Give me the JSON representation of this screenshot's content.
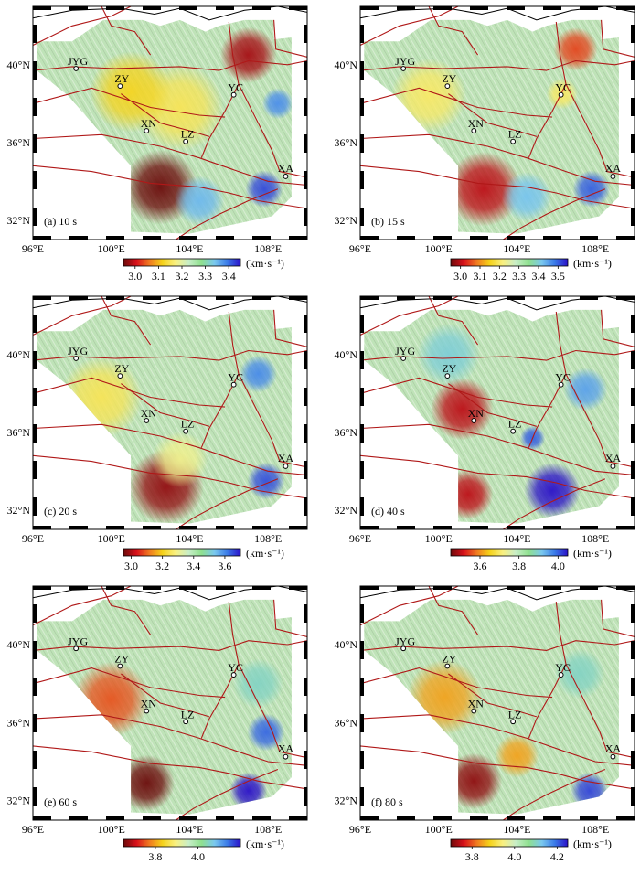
{
  "lon_ticks": [
    "96°E",
    "100°E",
    "104°E",
    "108°E"
  ],
  "lat_ticks": [
    "32°N",
    "36°N",
    "40°N"
  ],
  "cities": [
    {
      "name": "JYG",
      "lon": 98.2,
      "lat": 39.8
    },
    {
      "name": "ZY",
      "lon": 100.45,
      "lat": 38.9
    },
    {
      "name": "XN",
      "lon": 101.8,
      "lat": 36.6
    },
    {
      "name": "LZ",
      "lon": 103.8,
      "lat": 36.05
    },
    {
      "name": "YC",
      "lon": 106.25,
      "lat": 38.45
    },
    {
      "name": "XA",
      "lon": 108.9,
      "lat": 34.25
    }
  ],
  "colors": {
    "ramp": [
      "#6b0a0a",
      "#d8101a",
      "#f07a20",
      "#f5d21a",
      "#f9f080",
      "#c8eec8",
      "#8fe08f",
      "#7ac8ee",
      "#3a7ae8",
      "#2a10c8"
    ],
    "fault": "#b01818",
    "border": "#000000",
    "background_hatch": "#c8d4b8"
  },
  "panels": [
    {
      "label": "(a) 10 s",
      "unit": "(km·s⁻¹)",
      "scale_ticks": [
        "3.0",
        "3.1",
        "3.2",
        "3.3",
        "3.4"
      ],
      "scale_range": [
        2.95,
        3.45
      ],
      "anomalies": [
        {
          "lon": 102.5,
          "lat": 33.7,
          "value": 2.95,
          "r": 1.2
        },
        {
          "lon": 107.0,
          "lat": 40.5,
          "value": 2.98,
          "r": 0.9
        },
        {
          "lon": 103.5,
          "lat": 37.8,
          "value": 3.15,
          "r": 1.4
        },
        {
          "lon": 101.0,
          "lat": 38.6,
          "value": 3.12,
          "r": 1.3
        },
        {
          "lon": 107.8,
          "lat": 33.6,
          "value": 3.42,
          "r": 0.6
        },
        {
          "lon": 108.5,
          "lat": 38.0,
          "value": 3.38,
          "r": 0.5
        },
        {
          "lon": 104.5,
          "lat": 33.0,
          "value": 3.35,
          "r": 0.8
        }
      ]
    },
    {
      "label": "(b) 15 s",
      "unit": "(km·s⁻¹)",
      "scale_ticks": [
        "3.0",
        "3.1",
        "3.2",
        "3.3",
        "3.4",
        "3.5"
      ],
      "scale_range": [
        2.95,
        3.55
      ],
      "anomalies": [
        {
          "lon": 102.3,
          "lat": 33.6,
          "value": 3.0,
          "r": 1.2
        },
        {
          "lon": 107.0,
          "lat": 40.8,
          "value": 3.05,
          "r": 0.7
        },
        {
          "lon": 99.5,
          "lat": 38.4,
          "value": 3.2,
          "r": 1.2
        },
        {
          "lon": 106.3,
          "lat": 38.5,
          "value": 3.2,
          "r": 0.5
        },
        {
          "lon": 107.8,
          "lat": 33.6,
          "value": 3.5,
          "r": 0.6
        },
        {
          "lon": 104.5,
          "lat": 33.2,
          "value": 3.42,
          "r": 0.8
        }
      ]
    },
    {
      "label": "(c) 20 s",
      "unit": "(km·s⁻¹)",
      "scale_ticks": [
        "3.0",
        "3.2",
        "3.4",
        "3.6"
      ],
      "scale_range": [
        2.95,
        3.7
      ],
      "anomalies": [
        {
          "lon": 102.8,
          "lat": 33.2,
          "value": 2.98,
          "r": 1.2
        },
        {
          "lon": 99.5,
          "lat": 37.8,
          "value": 3.25,
          "r": 1.3
        },
        {
          "lon": 107.5,
          "lat": 39.0,
          "value": 3.6,
          "r": 0.6
        },
        {
          "lon": 107.9,
          "lat": 33.5,
          "value": 3.65,
          "r": 0.6
        },
        {
          "lon": 103.5,
          "lat": 34.6,
          "value": 3.3,
          "r": 0.9
        }
      ]
    },
    {
      "label": "(d) 40 s",
      "unit": "(km·s⁻¹)",
      "scale_ticks": [
        "3.6",
        "3.8",
        "4.0"
      ],
      "scale_range": [
        3.45,
        4.05
      ],
      "anomalies": [
        {
          "lon": 101.2,
          "lat": 37.2,
          "value": 3.5,
          "r": 1.0
        },
        {
          "lon": 101.5,
          "lat": 32.8,
          "value": 3.5,
          "r": 0.8
        },
        {
          "lon": 105.8,
          "lat": 33.0,
          "value": 4.05,
          "r": 0.9
        },
        {
          "lon": 107.5,
          "lat": 38.2,
          "value": 3.95,
          "r": 0.7
        },
        {
          "lon": 104.8,
          "lat": 35.7,
          "value": 4.0,
          "r": 0.4
        },
        {
          "lon": 100.5,
          "lat": 40.0,
          "value": 3.9,
          "r": 1.0
        }
      ]
    },
    {
      "label": "(e) 60 s",
      "unit": "(km·s⁻¹)",
      "scale_ticks": [
        "3.8",
        "4.0"
      ],
      "scale_range": [
        3.65,
        4.2
      ],
      "anomalies": [
        {
          "lon": 101.8,
          "lat": 32.9,
          "value": 3.65,
          "r": 0.9
        },
        {
          "lon": 100.0,
          "lat": 37.2,
          "value": 3.75,
          "r": 1.2
        },
        {
          "lon": 107.9,
          "lat": 35.5,
          "value": 4.15,
          "r": 0.6
        },
        {
          "lon": 107.0,
          "lat": 32.5,
          "value": 4.2,
          "r": 0.6
        },
        {
          "lon": 107.5,
          "lat": 38.0,
          "value": 4.05,
          "r": 0.8
        }
      ]
    },
    {
      "label": "(f) 80 s",
      "unit": "(km·s⁻¹)",
      "scale_ticks": [
        "3.8",
        "4.0",
        "4.2"
      ],
      "scale_range": [
        3.7,
        4.25
      ],
      "anomalies": [
        {
          "lon": 101.8,
          "lat": 33.0,
          "value": 3.72,
          "r": 0.9
        },
        {
          "lon": 104.0,
          "lat": 34.3,
          "value": 3.85,
          "r": 0.7
        },
        {
          "lon": 100.3,
          "lat": 37.3,
          "value": 3.85,
          "r": 1.2
        },
        {
          "lon": 107.7,
          "lat": 32.5,
          "value": 4.22,
          "r": 0.6
        },
        {
          "lon": 107.2,
          "lat": 38.5,
          "value": 4.1,
          "r": 0.8
        }
      ]
    }
  ]
}
